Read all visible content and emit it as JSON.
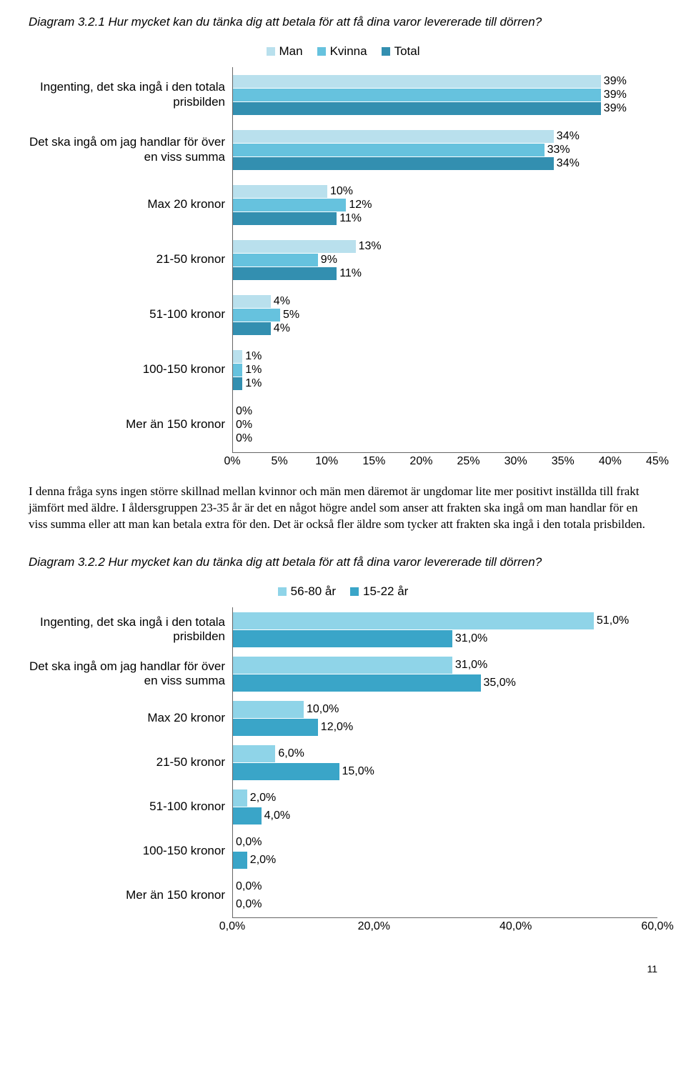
{
  "chart1": {
    "title": "Diagram 3.2.1 Hur mycket kan du tänka dig att betala för att få dina varor levererade till dörren?",
    "series": [
      "Man",
      "Kvinna",
      "Total"
    ],
    "series_colors": [
      "#b9e0ed",
      "#66c2de",
      "#338fb0"
    ],
    "xmax": 45,
    "xtick_step": 5,
    "xtick_format": "%",
    "categories": [
      {
        "label": "Ingenting, det ska ingå i den totala prisbilden",
        "values": [
          39,
          39,
          39
        ]
      },
      {
        "label": "Det ska ingå om jag handlar för över en viss summa",
        "values": [
          34,
          33,
          34
        ]
      },
      {
        "label": "Max 20 kronor",
        "values": [
          10,
          12,
          11
        ]
      },
      {
        "label": "21-50 kronor",
        "values": [
          13,
          9,
          11
        ]
      },
      {
        "label": "51-100 kronor",
        "values": [
          4,
          5,
          4
        ]
      },
      {
        "label": "100-150 kronor",
        "values": [
          1,
          1,
          1
        ]
      },
      {
        "label": "Mer än 150 kronor",
        "values": [
          0,
          0,
          0
        ]
      }
    ]
  },
  "body_text": "I denna fråga syns ingen större skillnad mellan kvinnor och män men däremot är ungdomar lite mer positivt inställda till frakt jämfört med äldre. I åldersgruppen 23-35 år är det en något högre andel som anser att frakten ska ingå om man handlar för en viss summa eller att man kan betala extra för den. Det är också fler äldre som tycker att frakten ska ingå i den totala prisbilden.",
  "chart2": {
    "title": "Diagram 3.2.2 Hur mycket kan du tänka dig att betala för att få dina varor levererade till dörren?",
    "series": [
      "56-80 år",
      "15-22 år"
    ],
    "series_colors": [
      "#8fd4e8",
      "#3aa5c8"
    ],
    "xmax": 60,
    "xtick_step": 20,
    "xtick_format": ",0%",
    "categories": [
      {
        "label": "Ingenting, det ska ingå i den totala prisbilden",
        "values": [
          51.0,
          31.0
        ]
      },
      {
        "label": "Det ska ingå om jag handlar för över en viss summa",
        "values": [
          31.0,
          35.0
        ]
      },
      {
        "label": "Max 20 kronor",
        "values": [
          10.0,
          12.0
        ]
      },
      {
        "label": "21-50 kronor",
        "values": [
          6.0,
          15.0
        ]
      },
      {
        "label": "51-100 kronor",
        "values": [
          2.0,
          4.0
        ]
      },
      {
        "label": "100-150 kronor",
        "values": [
          0.0,
          2.0
        ]
      },
      {
        "label": "Mer än 150 kronor",
        "values": [
          0.0,
          0.0
        ]
      }
    ]
  },
  "page_number": "11"
}
